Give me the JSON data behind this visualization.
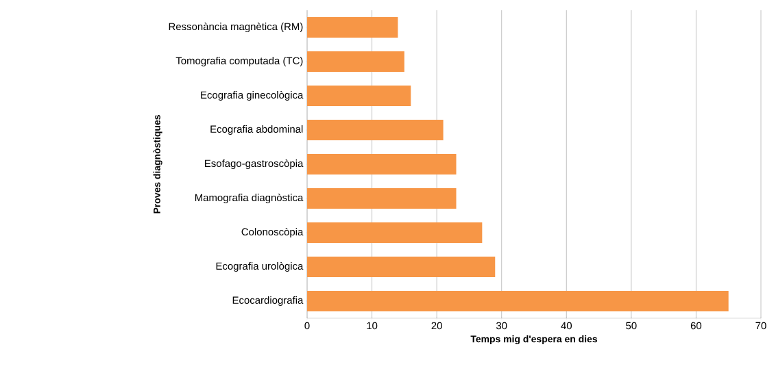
{
  "chart_data": {
    "type": "bar",
    "orientation": "horizontal",
    "categories": [
      "Ressonància magnètica (RM)",
      "Tomografia computada (TC)",
      "Ecografia ginecològica",
      "Ecografia abdominal",
      "Esofago-gastroscòpia",
      "Mamografia diagnòstica",
      "Colonoscòpia",
      "Ecografia urològica",
      "Ecocardiografia"
    ],
    "values": [
      14,
      15,
      16,
      21,
      23,
      23,
      27,
      29,
      65
    ],
    "color": "#f79646",
    "xlabel": "Temps mig d'espera en dies",
    "ylabel": "Proves diagnòstiques",
    "xlim": [
      0,
      70
    ],
    "xticks": [
      0,
      10,
      20,
      30,
      40,
      50,
      60,
      70
    ],
    "grid": "x"
  }
}
